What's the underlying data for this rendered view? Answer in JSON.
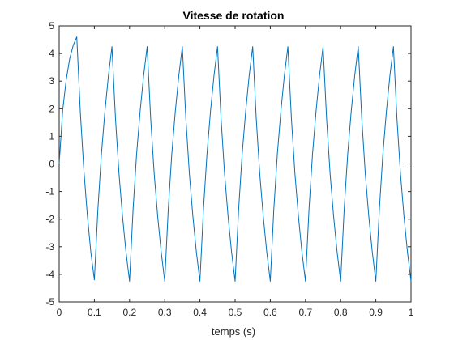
{
  "chart_data": {
    "type": "line",
    "title": "Vitesse de rotation",
    "xlabel": "temps (s)",
    "ylabel": "",
    "xlim": [
      0,
      1
    ],
    "ylim": [
      -5,
      5
    ],
    "xticks": [
      0,
      0.1,
      0.2,
      0.3,
      0.4,
      0.5,
      0.6,
      0.7,
      0.8,
      0.9,
      1
    ],
    "xtick_labels": [
      "0",
      "0.1",
      "0.2",
      "0.3",
      "0.4",
      "0.5",
      "0.6",
      "0.7",
      "0.8",
      "0.9",
      "1"
    ],
    "yticks": [
      -5,
      -4,
      -3,
      -2,
      -1,
      0,
      1,
      2,
      3,
      4,
      5
    ],
    "ytick_labels": [
      "-5",
      "-4",
      "-3",
      "-2",
      "-1",
      "0",
      "1",
      "2",
      "3",
      "4",
      "5"
    ],
    "grid": false,
    "line_color": "#0072BD",
    "series": [
      {
        "x": [
          0,
          0.01,
          0.02,
          0.03,
          0.04,
          0.05,
          0.06,
          0.07,
          0.08,
          0.09,
          0.1,
          0.11,
          0.12,
          0.13,
          0.14,
          0.15,
          0.16,
          0.17,
          0.18,
          0.19,
          0.2,
          0.21,
          0.22,
          0.23,
          0.24,
          0.25,
          0.26,
          0.27,
          0.28,
          0.29,
          0.3,
          0.31,
          0.32,
          0.33,
          0.34,
          0.35,
          0.36,
          0.37,
          0.38,
          0.39,
          0.4,
          0.41,
          0.42,
          0.43,
          0.44,
          0.45,
          0.46,
          0.47,
          0.48,
          0.49,
          0.5,
          0.51,
          0.52,
          0.53,
          0.54,
          0.55,
          0.56,
          0.57,
          0.58,
          0.59,
          0.6,
          0.61,
          0.62,
          0.63,
          0.64,
          0.65,
          0.66,
          0.67,
          0.68,
          0.69,
          0.7,
          0.71,
          0.72,
          0.73,
          0.74,
          0.75,
          0.76,
          0.77,
          0.78,
          0.79,
          0.8,
          0.81,
          0.82,
          0.83,
          0.84,
          0.85,
          0.86,
          0.87,
          0.88,
          0.89,
          0.9,
          0.91,
          0.92,
          0.93,
          0.94,
          0.95,
          0.96,
          0.97,
          0.98,
          0.99,
          1
        ],
        "values": [
          0.0,
          1.95,
          3.05,
          3.82,
          4.3,
          4.6,
          1.9,
          -0.2,
          -1.85,
          -3.2,
          -4.2,
          -1.65,
          0.35,
          1.9,
          3.2,
          4.25,
          1.65,
          -0.35,
          -1.9,
          -3.2,
          -4.25,
          -1.65,
          0.35,
          1.9,
          3.2,
          4.25,
          1.65,
          -0.35,
          -1.9,
          -3.2,
          -4.25,
          -1.65,
          0.35,
          1.9,
          3.2,
          4.25,
          1.65,
          -0.35,
          -1.9,
          -3.2,
          -4.25,
          -1.65,
          0.35,
          1.9,
          3.2,
          4.25,
          1.65,
          -0.35,
          -1.9,
          -3.2,
          -4.25,
          -1.65,
          0.35,
          1.9,
          3.2,
          4.25,
          1.65,
          -0.35,
          -1.9,
          -3.2,
          -4.25,
          -1.65,
          0.35,
          1.9,
          3.2,
          4.25,
          1.65,
          -0.35,
          -1.9,
          -3.2,
          -4.25,
          -1.65,
          0.35,
          1.9,
          3.2,
          4.25,
          1.65,
          -0.35,
          -1.9,
          -3.2,
          -4.25,
          -1.65,
          0.35,
          1.9,
          3.2,
          4.25,
          1.65,
          -0.35,
          -1.9,
          -3.2,
          -4.25,
          -1.65,
          0.35,
          1.9,
          3.2,
          4.25,
          1.65,
          -0.35,
          -1.9,
          -3.2,
          -4.25
        ]
      }
    ]
  }
}
